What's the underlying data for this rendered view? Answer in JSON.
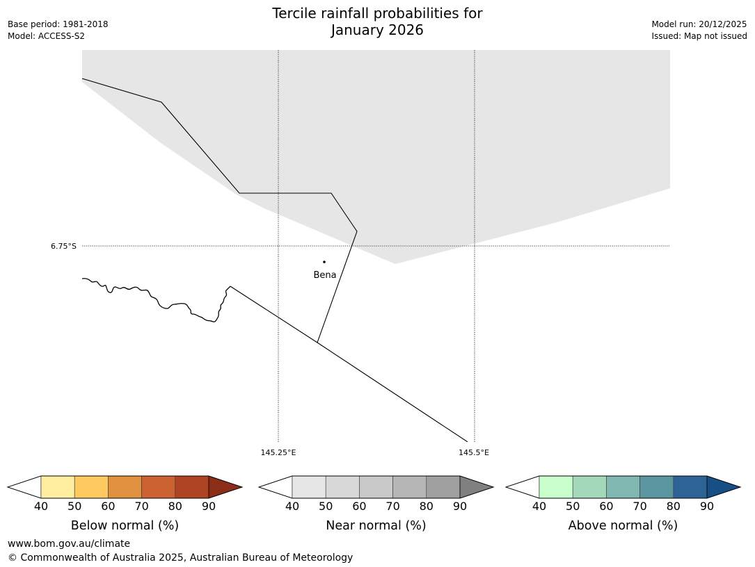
{
  "header": {
    "title_line1": "Tercile rainfall probabilities for",
    "title_line2": "January 2026",
    "base_period": "Base period: 1981-2018",
    "model": "Model: ACCESS-S2",
    "model_run": "Model run: 20/12/2025",
    "issued": "Issued: Map not issued"
  },
  "map": {
    "lat_label": "6.75°S",
    "lon_labels": [
      "145.25°E",
      "145.5°E"
    ],
    "place_name": "Bena",
    "shading_color": "#e6e6e6"
  },
  "colorbars": [
    {
      "label": "Below normal (%)",
      "ticks": [
        "40",
        "50",
        "60",
        "70",
        "80",
        "90"
      ],
      "colors": [
        "#ffffff",
        "#ffeda0",
        "#fec960",
        "#e0913f",
        "#cc6231",
        "#ae4424",
        "#8b2d17"
      ]
    },
    {
      "label": "Near normal (%)",
      "ticks": [
        "40",
        "50",
        "60",
        "70",
        "80",
        "90"
      ],
      "colors": [
        "#ffffff",
        "#e6e6e6",
        "#d8d8d8",
        "#c9c9c9",
        "#b6b6b6",
        "#a0a0a0",
        "#808080"
      ]
    },
    {
      "label": "Above normal (%)",
      "ticks": [
        "40",
        "50",
        "60",
        "70",
        "80",
        "90"
      ],
      "colors": [
        "#ffffff",
        "#c9ffcc",
        "#a3d8bb",
        "#80b7b0",
        "#5a95a0",
        "#2e6495",
        "#174e86"
      ]
    }
  ],
  "footer": {
    "website": "www.bom.gov.au/climate",
    "copyright": "© Commonwealth of Australia 2025, Australian Bureau of Meteorology"
  }
}
